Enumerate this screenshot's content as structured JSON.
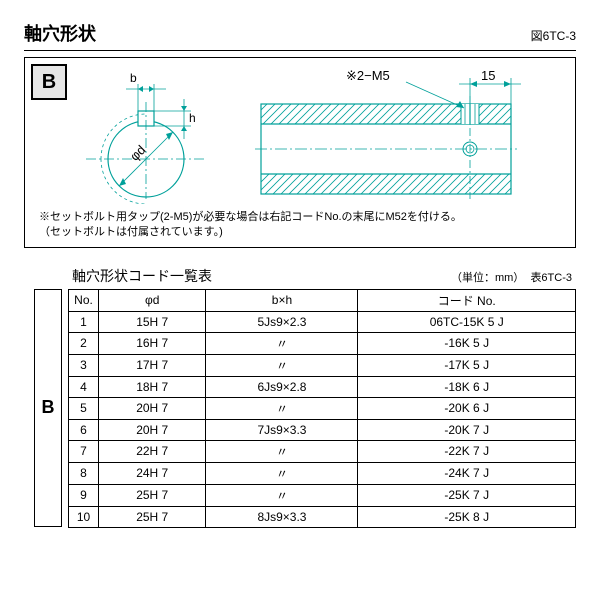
{
  "title": "軸穴形状",
  "figure_ref": "図6TC-3",
  "group_label": "B",
  "diagram": {
    "label_b": "b",
    "label_h": "h",
    "label_phid": "φd",
    "label_2M5": "※2−M5",
    "label_15": "15",
    "line_color": "#00a09a",
    "hatch_color": "#00a09a",
    "centerline_color": "#00a09a",
    "text_color": "#000000"
  },
  "note_line1": "※セットボルト用タップ(2-M5)が必要な場合は右記コードNo.の末尾にM52を付ける。",
  "note_line2": "（セットボルトは付属されています。)",
  "table": {
    "title": "軸穴形状コード一覧表",
    "unit": "（単位：mm）",
    "ref": "表6TC-3",
    "headers": [
      "No.",
      "φd",
      "b×h",
      "コード No."
    ],
    "rows": [
      [
        "1",
        "15H 7",
        "5Js9×2.3",
        "06TC-15K 5 J"
      ],
      [
        "2",
        "16H 7",
        "〃",
        "-16K 5 J"
      ],
      [
        "3",
        "17H 7",
        "〃",
        "-17K 5 J"
      ],
      [
        "4",
        "18H 7",
        "6Js9×2.8",
        "-18K 6 J"
      ],
      [
        "5",
        "20H 7",
        "〃",
        "-20K 6 J"
      ],
      [
        "6",
        "20H 7",
        "7Js9×3.3",
        "-20K 7 J"
      ],
      [
        "7",
        "22H 7",
        "〃",
        "-22K 7 J"
      ],
      [
        "8",
        "24H 7",
        "〃",
        "-24K 7 J"
      ],
      [
        "9",
        "25H 7",
        "〃",
        "-25K 7 J"
      ],
      [
        "10",
        "25H 7",
        "8Js9×3.3",
        "-25K 8 J"
      ]
    ]
  }
}
